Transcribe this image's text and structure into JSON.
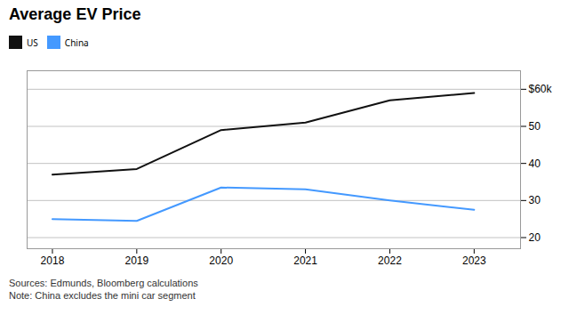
{
  "chart_data": {
    "type": "line",
    "title": "Average EV Price",
    "x": [
      2018,
      2019,
      2020,
      2021,
      2022,
      2023
    ],
    "series": [
      {
        "name": "US",
        "color": "#111111",
        "values": [
          37,
          38.5,
          49,
          51,
          57,
          59
        ]
      },
      {
        "name": "China",
        "color": "#4499ff",
        "values": [
          25,
          24.5,
          33.5,
          33,
          30,
          27.5
        ]
      }
    ],
    "xlim": [
      2017.7,
      2023.55
    ],
    "xticks": [
      2018,
      2019,
      2020,
      2021,
      2022,
      2023
    ],
    "ylim": [
      17,
      65
    ],
    "yticks": [
      20,
      30,
      40,
      50,
      {
        "value": 60,
        "label": "$60k"
      }
    ],
    "grid": true,
    "legend": "upper left",
    "annotations": [
      "Sources: Edmunds, Bloomberg calculations",
      "Note: China excludes the mini car segment"
    ]
  }
}
